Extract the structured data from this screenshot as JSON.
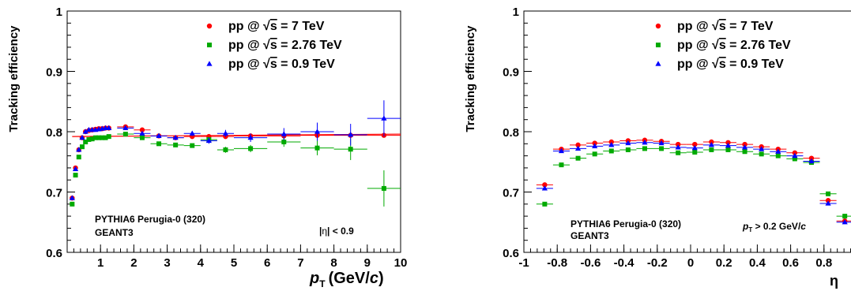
{
  "chart_data": [
    {
      "type": "scatter",
      "ylabel": "Tracking efficiency",
      "xlabel_main": "p",
      "xlabel_sub": "T",
      "xlabel_unit_pre": "(GeV/",
      "xlabel_unit_c": "c",
      "xlabel_unit_post": ")",
      "xlim": [
        0,
        10
      ],
      "ylim": [
        0.6,
        1.0
      ],
      "xticks": [
        1,
        2,
        3,
        4,
        5,
        6,
        7,
        8,
        9,
        10
      ],
      "yticks": [
        0.6,
        0.7,
        0.8,
        0.9,
        1
      ],
      "ytick_labels": [
        "0.6",
        "0.7",
        "0.8",
        "0.9",
        "1"
      ],
      "annotations": {
        "gen": "PYTHIA6 Perugia-0 (320)",
        "transport": "GEANT3",
        "cut_pre": "|",
        "cut_eta": "η",
        "cut_post": "| < 0.9"
      },
      "legend_position": "top-right",
      "fit_line": {
        "x": [
          0.15,
          10
        ],
        "y": [
          0.792,
          0.796
        ],
        "color": "#ff0000"
      },
      "series": [
        {
          "name": "pp @ √s = 7 TeV",
          "legend_pre": "pp @ ",
          "legend_s": "s",
          "legend_post": " = 7 TeV",
          "color": "#ff0000",
          "marker": "circle",
          "x": [
            0.15,
            0.25,
            0.35,
            0.45,
            0.55,
            0.65,
            0.75,
            0.85,
            0.95,
            1.05,
            1.15,
            1.25,
            1.75,
            2.25,
            2.75,
            3.25,
            3.75,
            4.25,
            4.75,
            5.5,
            6.5,
            7.5,
            8.5,
            9.5
          ],
          "xerr": [
            0.05,
            0.05,
            0.05,
            0.05,
            0.05,
            0.05,
            0.05,
            0.05,
            0.05,
            0.05,
            0.05,
            0.05,
            0.25,
            0.25,
            0.25,
            0.25,
            0.25,
            0.25,
            0.25,
            0.5,
            0.5,
            0.5,
            0.5,
            0.5
          ],
          "y": [
            0.69,
            0.74,
            0.77,
            0.79,
            0.8,
            0.802,
            0.803,
            0.804,
            0.805,
            0.805,
            0.806,
            0.806,
            0.808,
            0.803,
            0.793,
            0.79,
            0.792,
            0.792,
            0.792,
            0.793,
            0.793,
            0.794,
            0.794,
            0.794
          ],
          "yerr": [
            0,
            0,
            0,
            0,
            0,
            0,
            0,
            0,
            0,
            0,
            0,
            0,
            0,
            0,
            0,
            0,
            0,
            0,
            0,
            0,
            0,
            0,
            0,
            0
          ]
        },
        {
          "name": "pp @ √s = 2.76 TeV",
          "legend_pre": "pp @ ",
          "legend_s": "s",
          "legend_post": " = 2.76 TeV",
          "color": "#00aa00",
          "marker": "square",
          "x": [
            0.15,
            0.25,
            0.35,
            0.45,
            0.55,
            0.65,
            0.75,
            0.85,
            0.95,
            1.05,
            1.15,
            1.25,
            1.75,
            2.25,
            2.75,
            3.25,
            3.75,
            4.25,
            4.75,
            5.5,
            6.5,
            7.5,
            8.5,
            9.5
          ],
          "xerr": [
            0.05,
            0.05,
            0.05,
            0.05,
            0.05,
            0.05,
            0.05,
            0.05,
            0.05,
            0.05,
            0.05,
            0.05,
            0.25,
            0.25,
            0.25,
            0.25,
            0.25,
            0.25,
            0.25,
            0.5,
            0.5,
            0.5,
            0.5,
            0.5
          ],
          "y": [
            0.68,
            0.728,
            0.758,
            0.775,
            0.783,
            0.787,
            0.788,
            0.79,
            0.79,
            0.79,
            0.79,
            0.792,
            0.796,
            0.79,
            0.78,
            0.778,
            0.777,
            0.787,
            0.77,
            0.772,
            0.783,
            0.773,
            0.771,
            0.706
          ],
          "yerr": [
            0,
            0,
            0,
            0,
            0,
            0,
            0,
            0,
            0,
            0,
            0,
            0,
            0.003,
            0.003,
            0.003,
            0.003,
            0.003,
            0.004,
            0.005,
            0.006,
            0.008,
            0.012,
            0.018,
            0.03
          ]
        },
        {
          "name": "pp @ √s = 0.9 TeV",
          "legend_pre": "pp @ ",
          "legend_s": "s",
          "legend_post": " = 0.9 TeV",
          "color": "#0000ff",
          "marker": "triangle",
          "x": [
            0.15,
            0.25,
            0.35,
            0.45,
            0.55,
            0.65,
            0.75,
            0.85,
            0.95,
            1.05,
            1.15,
            1.25,
            1.75,
            2.25,
            2.75,
            3.25,
            3.75,
            4.25,
            4.75,
            5.5,
            6.5,
            7.5,
            8.5,
            9.5
          ],
          "xerr": [
            0.05,
            0.05,
            0.05,
            0.05,
            0.05,
            0.05,
            0.05,
            0.05,
            0.05,
            0.05,
            0.05,
            0.05,
            0.25,
            0.25,
            0.25,
            0.25,
            0.25,
            0.25,
            0.25,
            0.5,
            0.5,
            0.5,
            0.5,
            0.5
          ],
          "y": [
            0.69,
            0.738,
            0.77,
            0.79,
            0.8,
            0.803,
            0.803,
            0.803,
            0.804,
            0.805,
            0.806,
            0.806,
            0.806,
            0.797,
            0.793,
            0.79,
            0.797,
            0.785,
            0.797,
            0.79,
            0.796,
            0.8,
            0.795,
            0.822
          ],
          "yerr": [
            0,
            0,
            0,
            0,
            0,
            0,
            0,
            0,
            0,
            0,
            0,
            0,
            0.002,
            0.002,
            0.003,
            0.003,
            0.004,
            0.005,
            0.006,
            0.007,
            0.01,
            0.015,
            0.018,
            0.03
          ]
        }
      ]
    },
    {
      "type": "scatter",
      "ylabel": "Tracking efficiency",
      "xlabel": "η",
      "xlim": [
        -1,
        1
      ],
      "ylim": [
        0.6,
        1.0
      ],
      "xticks": [
        -1,
        -0.8,
        -0.6,
        -0.4,
        -0.2,
        0,
        0.2,
        0.4,
        0.6,
        0.8
      ],
      "xtick_labels": [
        "-1",
        "-0.8",
        "-0.6",
        "-0.4",
        "-0.2",
        "0",
        "0.2",
        "0.4",
        "0.6",
        "0.8"
      ],
      "yticks": [
        0.6,
        0.7,
        0.8,
        0.9,
        1
      ],
      "ytick_labels": [
        "0.6",
        "0.7",
        "0.8",
        "0.9",
        "1"
      ],
      "annotations": {
        "gen": "PYTHIA6 Perugia-0 (320)",
        "transport": "GEANT3",
        "cut_p": "p",
        "cut_sub": "T",
        "cut_mid": " > 0.2 GeV/",
        "cut_c": "c"
      },
      "legend_position": "top-right",
      "series": [
        {
          "name": "pp @ √s = 7 TeV",
          "legend_pre": "pp @ ",
          "legend_s": "s",
          "legend_post": " = 7 TeV",
          "color": "#ff0000",
          "marker": "circle",
          "x": [
            -0.875,
            -0.775,
            -0.675,
            -0.575,
            -0.475,
            -0.375,
            -0.275,
            -0.175,
            -0.075,
            0.025,
            0.125,
            0.225,
            0.325,
            0.425,
            0.525,
            0.625,
            0.725,
            0.825,
            0.925
          ],
          "xerr": [
            0.05,
            0.05,
            0.05,
            0.05,
            0.05,
            0.05,
            0.05,
            0.05,
            0.05,
            0.05,
            0.05,
            0.05,
            0.05,
            0.05,
            0.05,
            0.05,
            0.05,
            0.05,
            0.05
          ],
          "y": [
            0.712,
            0.771,
            0.778,
            0.781,
            0.783,
            0.785,
            0.786,
            0.784,
            0.779,
            0.779,
            0.783,
            0.782,
            0.779,
            0.775,
            0.771,
            0.765,
            0.756,
            0.686,
            0.652
          ],
          "yerr": [
            0,
            0,
            0,
            0,
            0,
            0,
            0,
            0,
            0,
            0,
            0,
            0,
            0,
            0,
            0,
            0,
            0,
            0,
            0
          ]
        },
        {
          "name": "pp @ √s = 2.76 TeV",
          "legend_pre": "pp @ ",
          "legend_s": "s",
          "legend_post": " = 2.76 TeV",
          "color": "#00aa00",
          "marker": "square",
          "x": [
            -0.875,
            -0.775,
            -0.675,
            -0.575,
            -0.475,
            -0.375,
            -0.275,
            -0.175,
            -0.075,
            0.025,
            0.125,
            0.225,
            0.325,
            0.425,
            0.525,
            0.625,
            0.725,
            0.825,
            0.925
          ],
          "xerr": [
            0.05,
            0.05,
            0.05,
            0.05,
            0.05,
            0.05,
            0.05,
            0.05,
            0.05,
            0.05,
            0.05,
            0.05,
            0.05,
            0.05,
            0.05,
            0.05,
            0.05,
            0.05,
            0.05
          ],
          "y": [
            0.68,
            0.745,
            0.756,
            0.763,
            0.768,
            0.77,
            0.772,
            0.772,
            0.765,
            0.766,
            0.77,
            0.77,
            0.767,
            0.763,
            0.76,
            0.755,
            0.749,
            0.697,
            0.66
          ],
          "yerr": [
            0,
            0,
            0,
            0,
            0,
            0,
            0,
            0,
            0,
            0,
            0,
            0,
            0,
            0,
            0,
            0,
            0,
            0,
            0
          ]
        },
        {
          "name": "pp @ √s = 0.9 TeV",
          "legend_pre": "pp @ ",
          "legend_s": "s",
          "legend_post": " = 0.9 TeV",
          "color": "#0000ff",
          "marker": "triangle",
          "x": [
            -0.875,
            -0.775,
            -0.675,
            -0.575,
            -0.475,
            -0.375,
            -0.275,
            -0.175,
            -0.075,
            0.025,
            0.125,
            0.225,
            0.325,
            0.425,
            0.525,
            0.625,
            0.725,
            0.825,
            0.925
          ],
          "xerr": [
            0.05,
            0.05,
            0.05,
            0.05,
            0.05,
            0.05,
            0.05,
            0.05,
            0.05,
            0.05,
            0.05,
            0.05,
            0.05,
            0.05,
            0.05,
            0.05,
            0.05,
            0.05,
            0.05
          ],
          "y": [
            0.706,
            0.768,
            0.772,
            0.776,
            0.778,
            0.781,
            0.782,
            0.781,
            0.774,
            0.773,
            0.778,
            0.777,
            0.774,
            0.771,
            0.767,
            0.76,
            0.751,
            0.681,
            0.65
          ],
          "yerr": [
            0,
            0,
            0,
            0,
            0,
            0,
            0,
            0,
            0,
            0,
            0,
            0,
            0,
            0,
            0,
            0,
            0,
            0,
            0
          ]
        }
      ]
    }
  ]
}
